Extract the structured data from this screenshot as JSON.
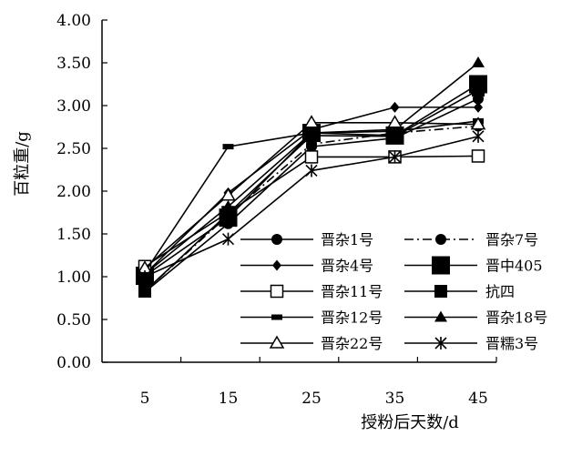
{
  "chart_data": {
    "type": "line",
    "xlabel": "授粉后天数/d",
    "ylabel": "百粒重/g",
    "x": [
      5,
      15,
      25,
      35,
      45
    ],
    "x_tick_labels": [
      "5",
      "15",
      "25",
      "35",
      "45"
    ],
    "ylim": [
      0,
      4
    ],
    "y_tick_labels": [
      "0.00",
      "0.50",
      "1.00",
      "1.50",
      "2.00",
      "2.50",
      "3.00",
      "3.50",
      "4.00"
    ],
    "grid": false,
    "legend_position": "bottom-right",
    "series": [
      {
        "name": "晋杂1号",
        "marker": "circle",
        "dash": "solid",
        "values": [
          0.82,
          1.62,
          2.52,
          2.62,
          3.08
        ]
      },
      {
        "name": "晋杂7号",
        "marker": "circle",
        "dash": "dashdot",
        "values": [
          0.83,
          1.72,
          2.55,
          2.68,
          2.76
        ]
      },
      {
        "name": "晋杂4号",
        "marker": "diamond",
        "dash": "solid",
        "values": [
          1.03,
          1.98,
          2.72,
          2.98,
          2.98
        ]
      },
      {
        "name": "晋中405",
        "marker": "square-large",
        "dash": "solid",
        "values": [
          1.01,
          1.69,
          2.68,
          2.65,
          3.25
        ]
      },
      {
        "name": "晋杂11号",
        "marker": "square-open",
        "dash": "solid",
        "values": [
          1.12,
          1.75,
          2.4,
          2.4,
          2.41
        ]
      },
      {
        "name": "抗四",
        "marker": "square",
        "dash": "solid",
        "values": [
          0.83,
          1.74,
          2.65,
          2.64,
          3.18
        ]
      },
      {
        "name": "晋杂12号",
        "marker": "bar",
        "dash": "solid",
        "values": [
          1.05,
          2.52,
          2.68,
          2.7,
          2.82
        ]
      },
      {
        "name": "晋杂18号",
        "marker": "triangle",
        "dash": "solid",
        "values": [
          1.03,
          1.82,
          2.68,
          2.72,
          3.5
        ]
      },
      {
        "name": "晋杂22号",
        "marker": "triangle-open",
        "dash": "solid",
        "values": [
          1.1,
          1.95,
          2.8,
          2.8,
          2.78
        ]
      },
      {
        "name": "晋糯3号",
        "marker": "asterisk",
        "dash": "solid",
        "values": [
          1.0,
          1.44,
          2.24,
          2.4,
          2.64
        ]
      }
    ]
  }
}
